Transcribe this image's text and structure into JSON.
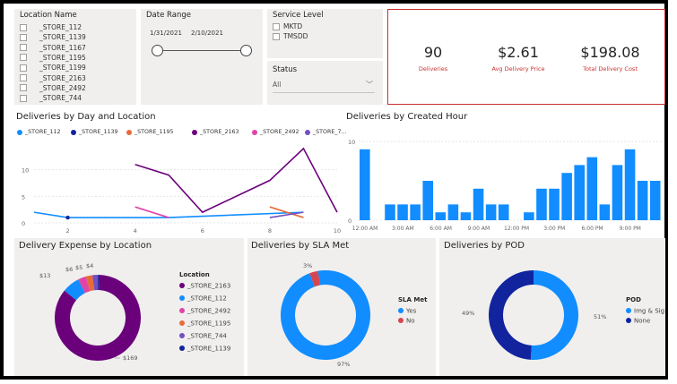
{
  "location_slicer": {
    "title": "Location Name",
    "items": [
      "_STORE_112",
      "_STORE_1139",
      "_STORE_1167",
      "_STORE_1195",
      "_STORE_1199",
      "_STORE_2163",
      "_STORE_2492",
      "_STORE_744"
    ]
  },
  "date_slicer": {
    "title": "Date Range",
    "start": "1/31/2021",
    "end": "2/10/2021"
  },
  "service_slicer": {
    "title": "Service Level",
    "items": [
      "MKTD",
      "TMSDD"
    ]
  },
  "status_slicer": {
    "title": "Status",
    "value": "All"
  },
  "kpis": [
    {
      "value": "90",
      "label": "Deliveries"
    },
    {
      "value": "$2.61",
      "label": "Avg Delivery Price"
    },
    {
      "value": "$198.08",
      "label": "Total Delivery Cost"
    }
  ],
  "colors": {
    "purple": "#6b007b",
    "blue": "#118dff",
    "navy": "#12239e",
    "pink": "#e044a7",
    "orange": "#e66c37",
    "violet": "#744ec2",
    "red": "#d64550",
    "kpi_border": "#c8302f"
  },
  "chart_data": [
    {
      "type": "line",
      "title": "Deliveries by Day and Location",
      "legend": [
        "_STORE_112",
        "_STORE_1139",
        "_STORE_1195",
        "_STORE_2163",
        "_STORE_2492",
        "_STORE_7..."
      ],
      "xticks": [
        "2",
        "4",
        "6",
        "8",
        "10"
      ],
      "yticks": [
        "0",
        "5",
        "10"
      ],
      "xlim": [
        1,
        10
      ],
      "ylim": [
        0,
        15
      ],
      "series": [
        {
          "name": "_STORE_2163",
          "color": "#6b007b",
          "points": [
            [
              4,
              11
            ],
            [
              5,
              9
            ],
            [
              6,
              2
            ],
            [
              8,
              8
            ],
            [
              9,
              14
            ],
            [
              10,
              2
            ]
          ]
        },
        {
          "name": "_STORE_112",
          "color": "#118dff",
          "points": [
            [
              1,
              2
            ],
            [
              2,
              1
            ],
            [
              5,
              1
            ],
            [
              9,
              2
            ]
          ]
        },
        {
          "name": "_STORE_1139",
          "color": "#12239e",
          "points": [
            [
              2,
              1
            ]
          ]
        },
        {
          "name": "_STORE_2492",
          "color": "#e044a7",
          "points": [
            [
              4,
              3
            ],
            [
              5,
              1
            ]
          ]
        },
        {
          "name": "_STORE_1195",
          "color": "#e66c37",
          "points": [
            [
              8,
              3
            ],
            [
              9,
              1
            ]
          ]
        },
        {
          "name": "_STORE_7...",
          "color": "#744ec2",
          "points": [
            [
              8,
              1
            ],
            [
              9,
              2
            ]
          ]
        }
      ]
    },
    {
      "type": "bar",
      "title": "Deliveries by Created Hour",
      "yticks": [
        "0",
        "10"
      ],
      "xticks": [
        "12:00 AM",
        "3:00 AM",
        "6:00 AM",
        "9:00 AM",
        "12:00 PM",
        "3:00 PM",
        "6:00 PM",
        "9:00 PM"
      ],
      "ylim": [
        0,
        10
      ],
      "values": [
        9,
        0,
        2,
        2,
        2,
        5,
        1,
        2,
        1,
        4,
        2,
        2,
        0,
        1,
        4,
        4,
        6,
        7,
        8,
        2,
        7,
        9,
        5,
        5
      ]
    },
    {
      "type": "pie",
      "title": "Delivery Expense by Location",
      "legend_title": "Location",
      "slices": [
        {
          "name": "_STORE_2163",
          "value": 169,
          "label": "$169",
          "color": "#6b007b"
        },
        {
          "name": "_STORE_112",
          "value": 13,
          "label": "$13",
          "color": "#118dff"
        },
        {
          "name": "_STORE_2492",
          "value": 6,
          "label": "$6",
          "color": "#e044a7"
        },
        {
          "name": "_STORE_1195",
          "value": 5,
          "label": "$5",
          "color": "#e66c37"
        },
        {
          "name": "_STORE_744",
          "value": 4,
          "label": "$4",
          "color": "#744ec2"
        },
        {
          "name": "_STORE_1139",
          "value": 1,
          "label": "",
          "color": "#12239e"
        }
      ]
    },
    {
      "type": "pie",
      "title": "Deliveries by SLA Met",
      "legend_title": "SLA Met",
      "slices": [
        {
          "name": "Yes",
          "value": 97,
          "label": "97%",
          "color": "#118dff"
        },
        {
          "name": "No",
          "value": 3,
          "label": "3%",
          "color": "#d64550"
        }
      ]
    },
    {
      "type": "pie",
      "title": "Deliveries by POD",
      "legend_title": "POD",
      "slices": [
        {
          "name": "Img & Sig",
          "value": 51,
          "label": "51%",
          "color": "#118dff"
        },
        {
          "name": "None",
          "value": 49,
          "label": "49%",
          "color": "#12239e"
        }
      ]
    }
  ]
}
